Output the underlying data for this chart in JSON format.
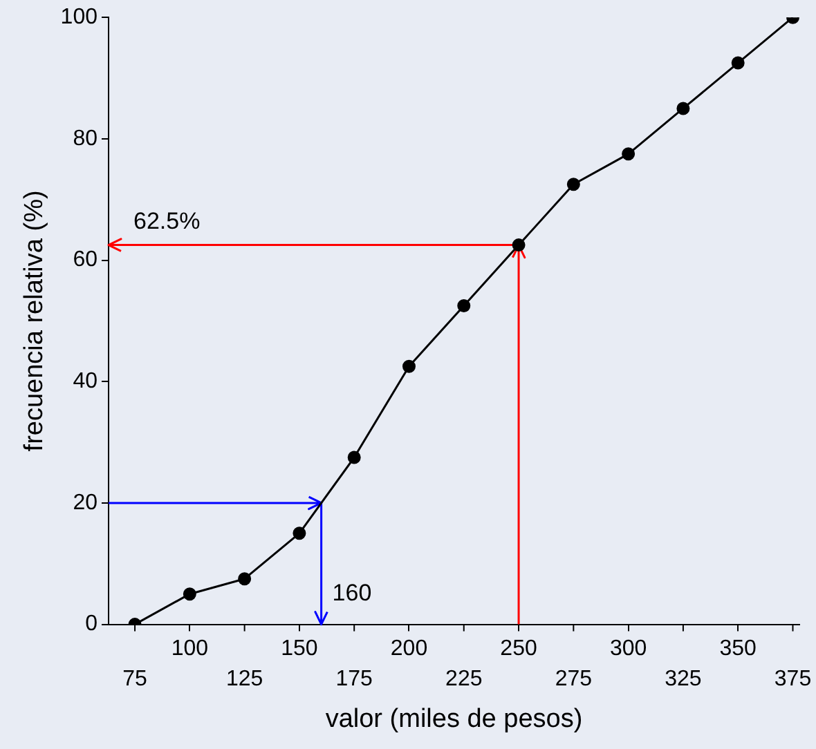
{
  "chart_data": {
    "type": "line",
    "xlabel": "valor (miles de pesos)",
    "ylabel": "frecuencia relativa (%)",
    "x": [
      75,
      100,
      125,
      150,
      175,
      200,
      225,
      250,
      275,
      300,
      325,
      350,
      375
    ],
    "series": [
      {
        "color": "#000000",
        "values": [
          0,
          5,
          7.5,
          15,
          27.5,
          42.5,
          52.5,
          62.5,
          72.5,
          77.5,
          85,
          92.5,
          100
        ]
      }
    ],
    "xlim": [
      63,
      378
    ],
    "xticks": [
      100,
      150,
      200,
      250,
      300,
      350
    ],
    "x2lim": [
      63,
      378
    ],
    "x2ticks": [
      75,
      125,
      175,
      225,
      275,
      325,
      375
    ],
    "ylim": [
      0,
      100
    ],
    "yticks": [
      0,
      20,
      40,
      60,
      80,
      100
    ],
    "grid": false,
    "legend": false,
    "marker": "circle",
    "line_style": "solid",
    "ref_lines": [
      {
        "axis": "x",
        "value": 250,
        "color": "#ff0000"
      },
      {
        "axis": "y",
        "value": 62.5,
        "label": "62.5%",
        "color": "#ff0000"
      },
      {
        "axis": "y",
        "value": 20,
        "color": "#0000ff"
      },
      {
        "axis": "x",
        "value": 160,
        "label": "160",
        "color": "#0000ff"
      }
    ]
  }
}
